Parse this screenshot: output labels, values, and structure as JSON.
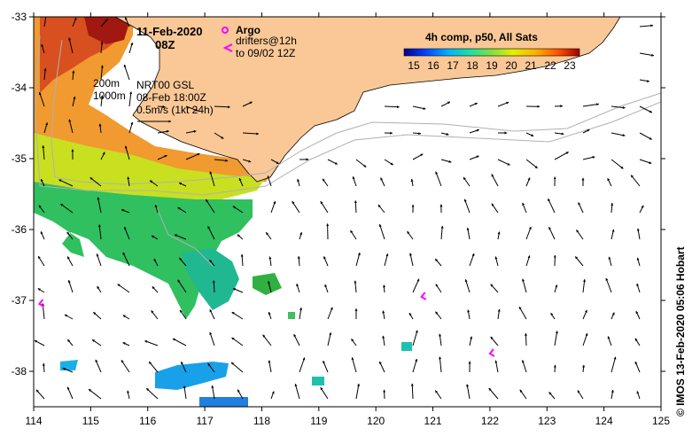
{
  "header": {
    "date": "11-Feb-2020",
    "time": "08Z",
    "argo_label": "Argo",
    "drifters_line1": "drifters@12h",
    "drifters_line2": "to 09/02 12Z",
    "composite_title": "4h comp, p50, All Sats"
  },
  "contours": {
    "label_200": "200m",
    "label_1000": "1000m"
  },
  "current": {
    "source": "NRT00 GSL",
    "datetime": "08-Feb 18:00Z",
    "scale": "0.5m/s (1kt 24h)"
  },
  "colorbar": {
    "ticks": [
      "15",
      "16",
      "17",
      "18",
      "19",
      "20",
      "21",
      "22",
      "23"
    ],
    "min": 14.5,
    "max": 23.5
  },
  "axes": {
    "x_ticks": [
      "114",
      "115",
      "116",
      "117",
      "118",
      "119",
      "120",
      "121",
      "122",
      "123",
      "124",
      "125"
    ],
    "y_ticks": [
      "-33",
      "-34",
      "-35",
      "-36",
      "-37",
      "-38"
    ],
    "lon_range": [
      114,
      125
    ],
    "lat_range": [
      -38.5,
      -33
    ]
  },
  "credit": "© IMOS 13-Feb-2020 05:06 Hobart",
  "colors": {
    "land": "#f9c896",
    "argo": "#ff00ff",
    "drifter": "#ff00ff"
  },
  "drifters": [
    {
      "lon": 114.1,
      "lat": -37.05
    },
    {
      "lon": 120.8,
      "lat": -36.95
    },
    {
      "lon": 122.0,
      "lat": -37.75
    }
  ]
}
